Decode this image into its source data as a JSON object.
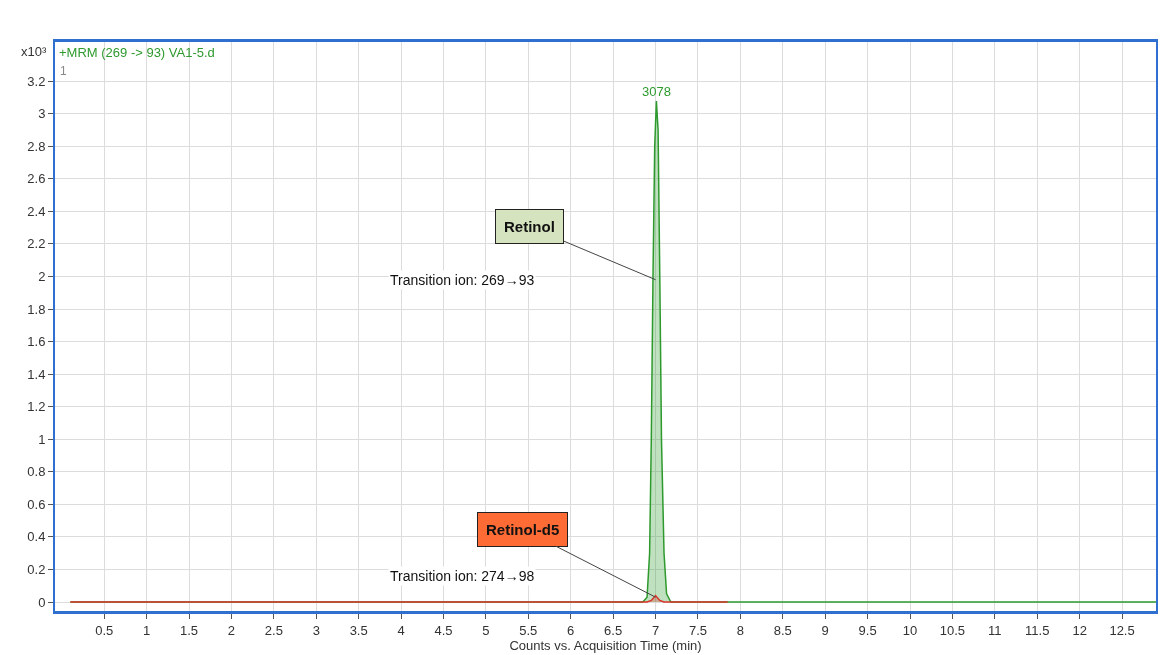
{
  "chart_data": {
    "type": "area",
    "title": "+MRM (269 -> 93) VA1-5.d",
    "xlabel": "Counts vs. Acquisition Time (min)",
    "ylabel": "x10³",
    "series": [
      {
        "color": "#2e9a2e",
        "x": [
          0.1,
          2.0,
          4.0,
          6.0,
          6.5,
          6.85,
          6.9,
          6.93,
          6.95,
          6.97,
          6.99,
          7.01,
          7.03,
          7.05,
          7.07,
          7.1,
          7.13,
          7.18,
          7.5,
          7.85,
          9.0,
          11.0,
          12.9
        ],
        "values": [
          0,
          0,
          0,
          0,
          0,
          0,
          0.03,
          0.3,
          1.0,
          2.0,
          2.8,
          3.078,
          2.9,
          2.0,
          1.0,
          0.3,
          0.05,
          0,
          0,
          0,
          0,
          0,
          0
        ]
      },
      {
        "color": "#d9342b",
        "x": [
          0.1,
          2.0,
          4.0,
          6.0,
          6.5,
          6.9,
          6.95,
          7.0,
          7.05,
          7.1,
          7.5,
          7.85
        ],
        "values": [
          0,
          0,
          0,
          0,
          0,
          0,
          0.01,
          0.04,
          0.01,
          0,
          0,
          0
        ]
      }
    ],
    "annotations": [
      "3078",
      {
        "text": "Retinol",
        "x": 7.0,
        "y": 1.98
      },
      "Transition ion: 269→93",
      {
        "text": "Retinol-d5",
        "x": 7.0,
        "y": 0.03
      },
      "Transition ion: 274→98",
      "1"
    ],
    "xlim": [
      -0.08,
      12.9
    ],
    "ylim": [
      -0.055,
      3.44
    ],
    "xticks": [
      0.5,
      1,
      1.5,
      2,
      2.5,
      3,
      3.5,
      4,
      4.5,
      5,
      5.5,
      6,
      6.5,
      7,
      7.5,
      8,
      8.5,
      9,
      9.5,
      10,
      10.5,
      11,
      11.5,
      12,
      12.5
    ],
    "yticks": [
      0,
      0.2,
      0.4,
      0.6,
      0.8,
      1,
      1.2,
      1.4,
      1.6,
      1.8,
      2,
      2.2,
      2.4,
      2.6,
      2.8,
      3,
      3.2
    ],
    "grid": true,
    "legend": false
  }
}
